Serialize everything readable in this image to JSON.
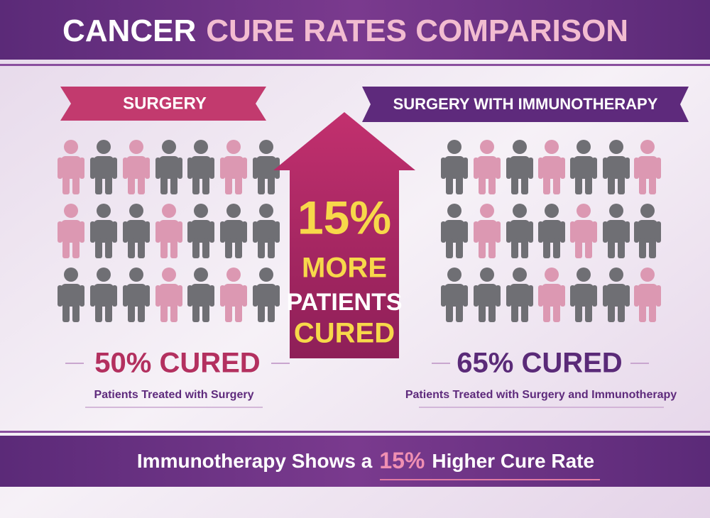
{
  "header": {
    "title_part1": "CANCER",
    "title_part2": "CURE RATES COMPARISON"
  },
  "left": {
    "label": "SURGERY",
    "result": "50% CURED",
    "caption": "Patients Treated with Surgery"
  },
  "right": {
    "label": "SURGERY WITH IMMUNOTHERAPY",
    "result": "65% CURED",
    "caption": "Patients Treated with Surgery and Immunotherapy"
  },
  "arrow": {
    "lines": [
      "15%",
      "MORE",
      "PATIENTS",
      "CURED"
    ]
  },
  "footer": {
    "text_before": "Immunotherapy Shows a",
    "highlight": "15%",
    "text_after": "Higher Cure Rate"
  }
}
